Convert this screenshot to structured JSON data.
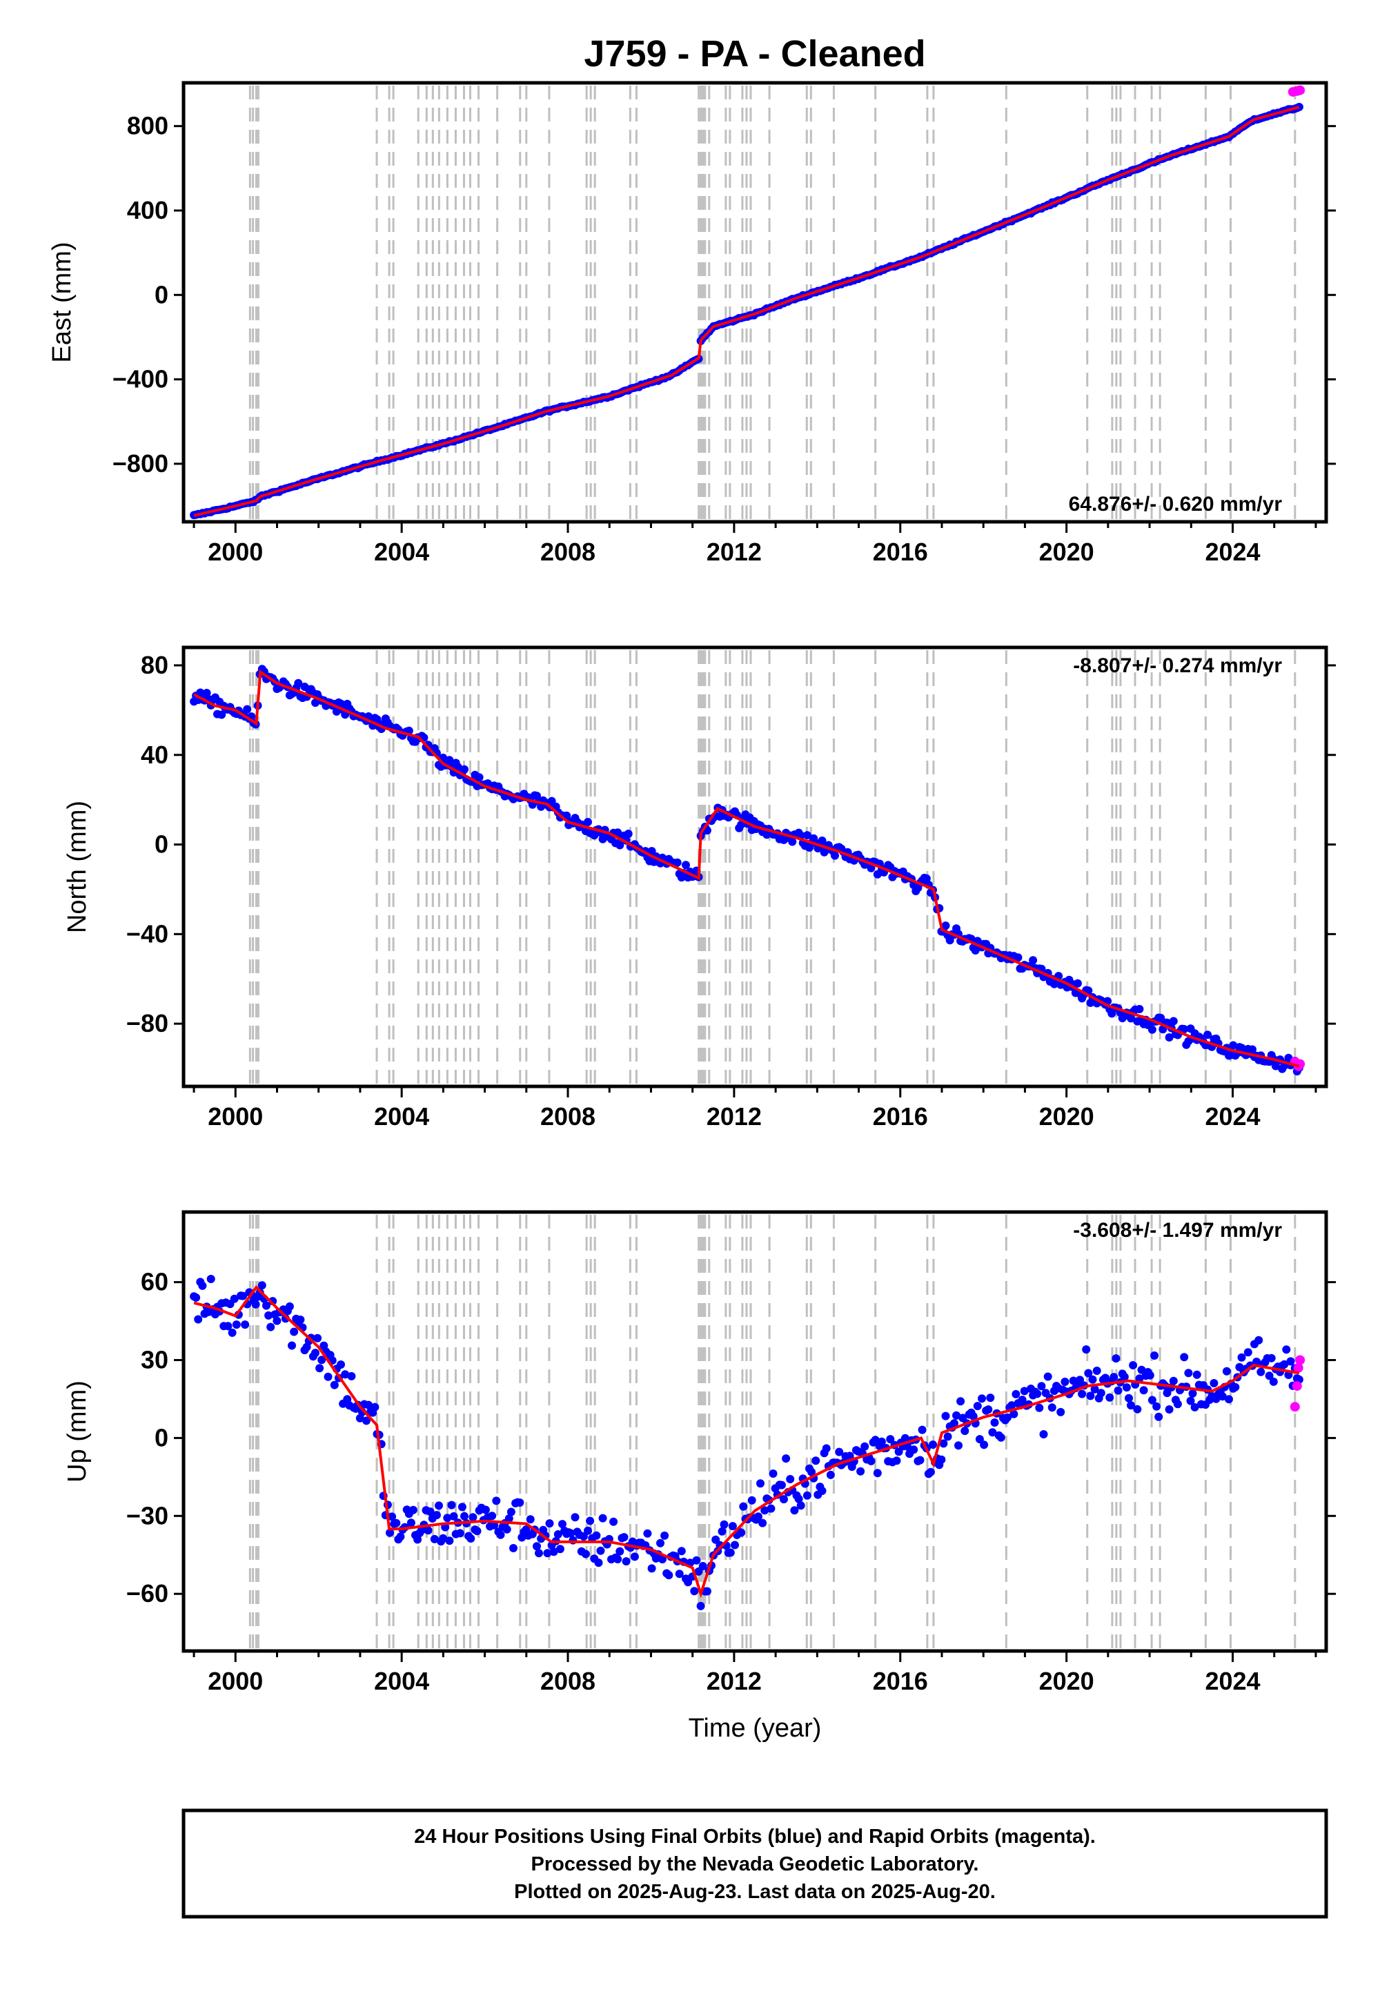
{
  "title": "J759  - PA - Cleaned",
  "xlabel": "Time (year)",
  "x_ticks": [
    "2000",
    "2004",
    "2008",
    "2012",
    "2016",
    "2020",
    "2024"
  ],
  "footer": {
    "line1": "24 Hour Positions Using Final Orbits (blue) and Rapid Orbits (magenta).",
    "line2": "Processed by the Nevada Geodetic Laboratory.",
    "line3": "Plotted on 2025-Aug-23. Last data on 2025-Aug-20."
  },
  "colors": {
    "final": "#0000ff",
    "rapid": "#ff00ff",
    "fit": "#ff0000",
    "event": "#bfbfbf"
  },
  "event_lines": [
    2000.35,
    2000.42,
    2000.5,
    2000.55,
    2003.4,
    2003.7,
    2003.8,
    2004.4,
    2004.6,
    2004.75,
    2004.9,
    2005.1,
    2005.3,
    2005.5,
    2005.65,
    2005.85,
    2006.3,
    2006.85,
    2007.0,
    2007.55,
    2008.45,
    2008.55,
    2008.65,
    2009.5,
    2009.65,
    2011.15,
    2011.2,
    2011.25,
    2011.3,
    2011.4,
    2011.8,
    2011.9,
    2012.2,
    2012.3,
    2012.4,
    2012.85,
    2013.75,
    2013.85,
    2014.4,
    2015.4,
    2016.65,
    2016.8,
    2018.55,
    2020.5,
    2021.1,
    2021.2,
    2021.3,
    2021.65,
    2022.05,
    2022.25,
    2023.35,
    2023.95,
    2025.5
  ],
  "chart_data": [
    {
      "type": "scatter",
      "name": "east",
      "ylabel": "East (mm)",
      "rate": "64.876+/- 0.620 mm/yr",
      "rate_position": "bottom-right",
      "xlim": [
        1998.75,
        2026.25
      ],
      "ylim": [
        -1075,
        1005
      ],
      "y_ticks": [
        -800,
        -400,
        0,
        400,
        800
      ],
      "noise": 3,
      "x": [
        1999.0,
        2000.0,
        2000.5,
        2000.6,
        2002.0,
        2003.5,
        2005.0,
        2006.5,
        2007.5,
        2009.0,
        2010.5,
        2011.15,
        2011.2,
        2011.5,
        2012.5,
        2013.5,
        2015.0,
        2016.5,
        2018.0,
        2019.5,
        2021.0,
        2022.5,
        2023.9,
        2024.5,
        2025.6
      ],
      "y": [
        -1045,
        -1000,
        -975,
        -955,
        -870,
        -785,
        -705,
        -615,
        -550,
        -480,
        -380,
        -300,
        -215,
        -150,
        -90,
        -15,
        80,
        180,
        300,
        420,
        545,
        660,
        750,
        830,
        890
      ],
      "rapid": {
        "x": [
          2025.45,
          2025.55,
          2025.62
        ],
        "y": [
          962,
          966,
          970
        ]
      }
    },
    {
      "type": "scatter",
      "name": "north",
      "ylabel": "North (mm)",
      "rate": "-8.807+/- 0.274 mm/yr",
      "rate_position": "top-right",
      "xlim": [
        1998.75,
        2026.25
      ],
      "ylim": [
        -108,
        88
      ],
      "y_ticks": [
        -80,
        -40,
        0,
        40,
        80
      ],
      "noise": 2.5,
      "x": [
        1999.0,
        1999.5,
        2000.0,
        2000.5,
        2000.6,
        2001.0,
        2002.0,
        2003.0,
        2003.6,
        2004.4,
        2005.0,
        2006.0,
        2007.0,
        2007.5,
        2008.0,
        2009.0,
        2010.0,
        2011.15,
        2011.2,
        2011.6,
        2012.5,
        2013.5,
        2014.5,
        2015.5,
        2016.8,
        2017.0,
        2018.0,
        2019.0,
        2020.0,
        2021.0,
        2022.0,
        2023.0,
        2024.0,
        2025.0,
        2025.6
      ],
      "y": [
        67,
        62,
        60,
        54,
        77,
        72,
        65,
        57,
        52,
        48,
        36,
        26,
        20,
        18,
        10,
        5,
        -5,
        -15,
        5,
        16,
        8,
        3,
        -3,
        -10,
        -20,
        -38,
        -46,
        -54,
        -62,
        -72,
        -78,
        -86,
        -92,
        -96,
        -99
      ],
      "rapid": {
        "x": [
          2025.5,
          2025.58,
          2025.62
        ],
        "y": [
          -97,
          -99,
          -98
        ]
      }
    },
    {
      "type": "scatter",
      "name": "up",
      "ylabel": "Up (mm)",
      "rate": "-3.608+/- 1.497 mm/yr",
      "rate_position": "top-right",
      "xlim": [
        1998.75,
        2026.25
      ],
      "ylim": [
        -82,
        87
      ],
      "y_ticks": [
        -60,
        -30,
        0,
        30,
        60
      ],
      "noise": 7,
      "x": [
        1999.0,
        1999.5,
        2000.0,
        2000.5,
        2001.0,
        2002.0,
        2003.0,
        2003.4,
        2003.7,
        2004.0,
        2005.0,
        2006.0,
        2007.0,
        2007.6,
        2008.0,
        2009.0,
        2010.0,
        2011.0,
        2011.2,
        2011.5,
        2012.5,
        2013.5,
        2014.5,
        2015.5,
        2016.5,
        2016.8,
        2017.0,
        2018.0,
        2019.0,
        2020.0,
        2020.5,
        2021.5,
        2022.5,
        2023.5,
        2024.0,
        2024.5,
        2025.6
      ],
      "y": [
        52,
        50,
        47,
        58,
        50,
        35,
        12,
        5,
        -35,
        -35,
        -33,
        -32,
        -33,
        -40,
        -40,
        -40,
        -43,
        -50,
        -60,
        -45,
        -28,
        -18,
        -10,
        -5,
        0,
        -10,
        2,
        8,
        12,
        17,
        20,
        22,
        20,
        18,
        22,
        28,
        25
      ],
      "rapid": {
        "x": [
          2025.5,
          2025.55,
          2025.58,
          2025.62
        ],
        "y": [
          12,
          20,
          27,
          30
        ]
      }
    }
  ]
}
